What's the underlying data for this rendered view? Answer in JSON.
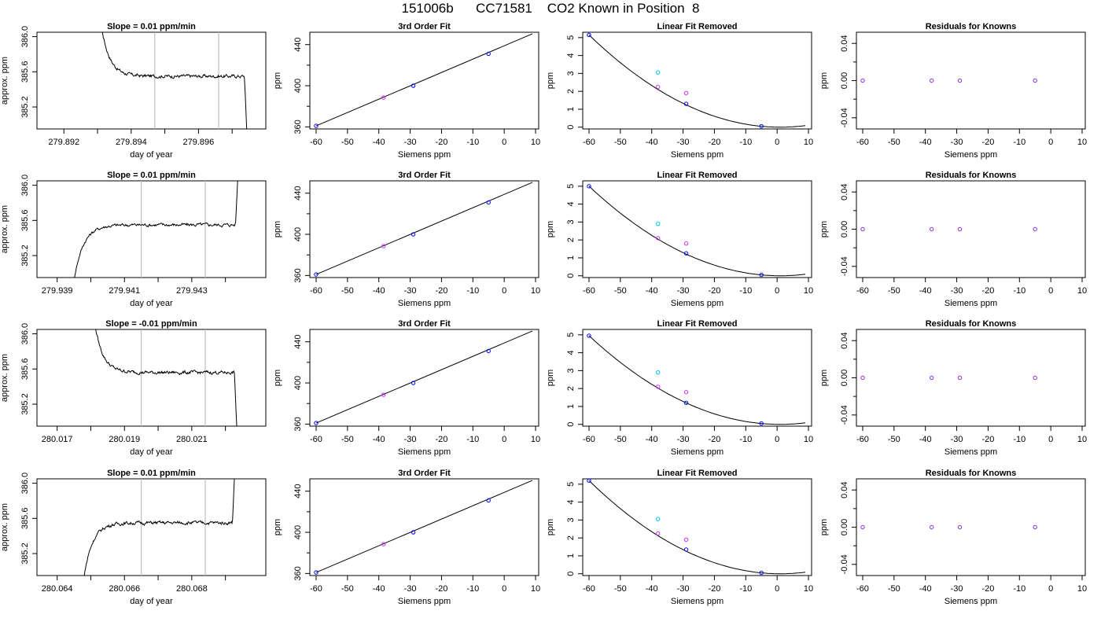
{
  "main_title": "151006b      CC71581    CO2 Known in Position  8",
  "colors": {
    "line": "#000000",
    "vline": "#bebebe",
    "blue": "#0000ff",
    "cyan": "#00bfff",
    "magenta": "#cc33ff",
    "purple": "#8a2be2"
  },
  "common": {
    "fit_title": "3rd Order Fit",
    "lin_title": "Linear Fit Removed",
    "res_title": "Residuals for Knowns",
    "siemens_label": "Siemens ppm",
    "ppm_label": "ppm",
    "doy_label": "day of year",
    "approx_label": "approx. ppm",
    "siemens_ticks": [
      "-60",
      "-50",
      "-40",
      "-30",
      "-20",
      "-10",
      "0",
      "10"
    ],
    "fit_yticks": [
      "360",
      "400",
      "440"
    ],
    "lin_yticks": [
      "0",
      "1",
      "2",
      "3",
      "4",
      "5"
    ],
    "res_yticks": [
      "-0.04",
      "0.00",
      "0.04"
    ],
    "ts_yticks": [
      "385.2",
      "385.6",
      "386.0"
    ]
  },
  "chart_data": [
    {
      "row": 1,
      "slope_title": "Slope =  0.01  ppm/min",
      "ts": {
        "type": "line",
        "xlim": [
          279.8912,
          279.898
        ],
        "ylim": [
          384.95,
          386.05
        ],
        "xticks": [
          "279.892",
          "279.894",
          "279.896"
        ],
        "xtick_values": [
          279.892,
          279.893,
          279.894,
          279.895,
          279.896,
          279.897
        ],
        "vlines": [
          279.8947,
          279.8966
        ],
        "shape": "fall",
        "plateau": 385.55,
        "t_start": 279.893,
        "t_end": 279.8975
      },
      "fit": {
        "type": "line",
        "xlim": [
          -62,
          11
        ],
        "ylim": [
          358,
          452
        ],
        "points": [
          [
            -60,
            361,
            "blue"
          ],
          [
            -38.5,
            388.5,
            "magenta"
          ],
          [
            -29,
            400,
            "blue"
          ],
          [
            -5,
            431,
            "blue"
          ]
        ],
        "line": [
          [
            -60,
            361
          ],
          [
            9,
            450.5
          ]
        ]
      },
      "lin": {
        "type": "line",
        "xlim": [
          -62,
          11
        ],
        "ylim": [
          -0.1,
          5.3
        ],
        "a": 0.0013,
        "vertex": 1,
        "points": [
          [
            -60,
            5.15,
            "blue"
          ],
          [
            -38,
            3.05,
            "cyan"
          ],
          [
            -38,
            2.25,
            "magenta"
          ],
          [
            -29,
            1.9,
            "magenta"
          ],
          [
            -29,
            1.3,
            "blue"
          ],
          [
            -5,
            0.05,
            "blue"
          ]
        ]
      },
      "res": {
        "type": "scatter",
        "xlim": [
          -62,
          11
        ],
        "ylim": [
          -0.052,
          0.052
        ],
        "points": [
          [
            -60,
            0
          ],
          [
            -38,
            0
          ],
          [
            -29,
            0
          ],
          [
            -5,
            0
          ]
        ]
      }
    },
    {
      "row": 2,
      "slope_title": "Slope =  0.01  ppm/min",
      "ts": {
        "type": "line",
        "xlim": [
          279.9384,
          279.9452
        ],
        "ylim": [
          384.95,
          386.05
        ],
        "xticks": [
          "279.939",
          "279.941",
          "279.943"
        ],
        "xtick_values": [
          279.939,
          279.94,
          279.941,
          279.942,
          279.943,
          279.944
        ],
        "vlines": [
          279.9415,
          279.9434
        ],
        "shape": "rise",
        "plateau": 385.55,
        "t_start": 279.9394,
        "t_end": 279.9444
      },
      "fit": {
        "type": "line",
        "xlim": [
          -62,
          11
        ],
        "ylim": [
          358,
          452
        ],
        "points": [
          [
            -60,
            361,
            "blue"
          ],
          [
            -38.5,
            388.5,
            "magenta"
          ],
          [
            -29,
            400,
            "blue"
          ],
          [
            -5,
            431,
            "blue"
          ]
        ],
        "line": [
          [
            -60,
            361
          ],
          [
            9,
            450.5
          ]
        ]
      },
      "lin": {
        "type": "line",
        "xlim": [
          -62,
          11
        ],
        "ylim": [
          -0.1,
          5.3
        ],
        "a": 0.0013,
        "vertex": 1,
        "points": [
          [
            -60,
            5.0,
            "blue"
          ],
          [
            -38,
            2.9,
            "cyan"
          ],
          [
            -38,
            2.1,
            "magenta"
          ],
          [
            -29,
            1.8,
            "magenta"
          ],
          [
            -29,
            1.25,
            "blue"
          ],
          [
            -5,
            0.05,
            "blue"
          ]
        ]
      },
      "res": {
        "type": "scatter",
        "xlim": [
          -62,
          11
        ],
        "ylim": [
          -0.052,
          0.052
        ],
        "points": [
          [
            -60,
            0
          ],
          [
            -38,
            0
          ],
          [
            -29,
            0
          ],
          [
            -5,
            0
          ]
        ]
      }
    },
    {
      "row": 3,
      "slope_title": "Slope =  -0.01  ppm/min",
      "ts": {
        "type": "line",
        "xlim": [
          280.0164,
          280.0232
        ],
        "ylim": [
          384.95,
          386.05
        ],
        "xticks": [
          "280.017",
          "280.019",
          "280.021"
        ],
        "xtick_values": [
          280.017,
          280.018,
          280.019,
          280.02,
          280.021,
          280.022
        ],
        "vlines": [
          280.0195,
          280.0214
        ],
        "shape": "fall",
        "plateau": 385.56,
        "t_start": 280.018,
        "t_end": 280.0224
      },
      "fit": {
        "type": "line",
        "xlim": [
          -62,
          11
        ],
        "ylim": [
          358,
          452
        ],
        "points": [
          [
            -60,
            361,
            "blue"
          ],
          [
            -38.5,
            388.5,
            "magenta"
          ],
          [
            -29,
            400,
            "blue"
          ],
          [
            -5,
            431,
            "blue"
          ]
        ],
        "line": [
          [
            -60,
            361
          ],
          [
            9,
            450.5
          ]
        ]
      },
      "lin": {
        "type": "line",
        "xlim": [
          -62,
          11
        ],
        "ylim": [
          -0.1,
          5.3
        ],
        "a": 0.0013,
        "vertex": 1,
        "points": [
          [
            -60,
            4.95,
            "blue"
          ],
          [
            -38,
            2.9,
            "cyan"
          ],
          [
            -38,
            2.1,
            "magenta"
          ],
          [
            -29,
            1.8,
            "magenta"
          ],
          [
            -29,
            1.2,
            "blue"
          ],
          [
            -5,
            0.05,
            "blue"
          ]
        ]
      },
      "res": {
        "type": "scatter",
        "xlim": [
          -62,
          11
        ],
        "ylim": [
          -0.052,
          0.052
        ],
        "points": [
          [
            -60,
            0
          ],
          [
            -38,
            0
          ],
          [
            -29,
            0
          ],
          [
            -5,
            0
          ]
        ]
      }
    },
    {
      "row": 4,
      "slope_title": "Slope =  0.01  ppm/min",
      "ts": {
        "type": "line",
        "xlim": [
          280.0634,
          280.0702
        ],
        "ylim": [
          384.95,
          386.05
        ],
        "xticks": [
          "280.064",
          "280.066",
          "280.068"
        ],
        "xtick_values": [
          280.064,
          280.065,
          280.066,
          280.067,
          280.068,
          280.069
        ],
        "vlines": [
          280.0665,
          280.0684
        ],
        "shape": "rise",
        "plateau": 385.55,
        "t_start": 280.0647,
        "t_end": 280.0693
      },
      "fit": {
        "type": "line",
        "xlim": [
          -62,
          11
        ],
        "ylim": [
          358,
          452
        ],
        "points": [
          [
            -60,
            361,
            "blue"
          ],
          [
            -38.5,
            388.5,
            "magenta"
          ],
          [
            -29,
            400,
            "blue"
          ],
          [
            -5,
            431,
            "blue"
          ]
        ],
        "line": [
          [
            -60,
            361
          ],
          [
            9,
            450.5
          ]
        ]
      },
      "lin": {
        "type": "line",
        "xlim": [
          -62,
          11
        ],
        "ylim": [
          -0.1,
          5.3
        ],
        "a": 0.0013,
        "vertex": 1,
        "points": [
          [
            -60,
            5.2,
            "blue"
          ],
          [
            -38,
            3.05,
            "cyan"
          ],
          [
            -38,
            2.25,
            "magenta"
          ],
          [
            -29,
            1.9,
            "magenta"
          ],
          [
            -29,
            1.35,
            "blue"
          ],
          [
            -5,
            0.05,
            "blue"
          ]
        ]
      },
      "res": {
        "type": "scatter",
        "xlim": [
          -62,
          11
        ],
        "ylim": [
          -0.052,
          0.052
        ],
        "points": [
          [
            -60,
            0
          ],
          [
            -38,
            0
          ],
          [
            -29,
            0
          ],
          [
            -5,
            0
          ]
        ]
      }
    }
  ]
}
